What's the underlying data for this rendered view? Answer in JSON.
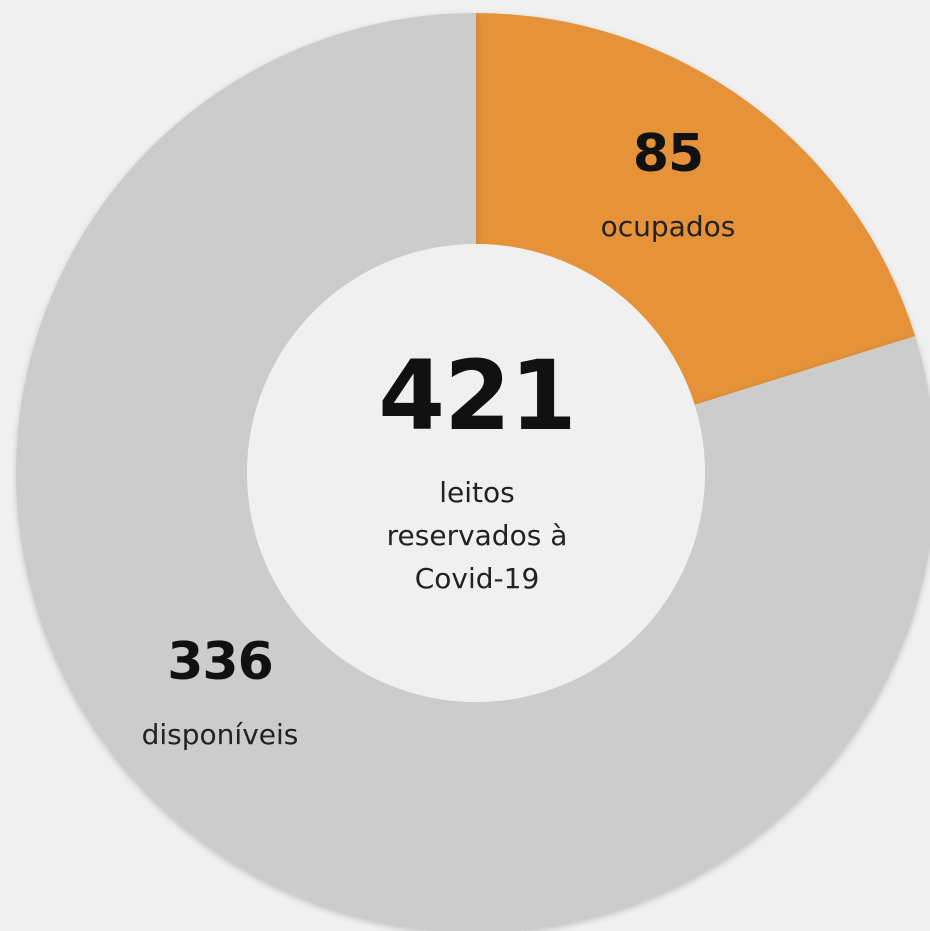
{
  "chart_data": {
    "type": "pie",
    "donut": true,
    "total": 421,
    "total_caption_lines": [
      "leitos",
      "reservados à",
      "Covid-19"
    ],
    "slices": [
      {
        "label": "ocupados",
        "value": 85,
        "color": "#e59239"
      },
      {
        "label": "disponíveis",
        "value": 336,
        "color": "#cccccc"
      }
    ]
  }
}
